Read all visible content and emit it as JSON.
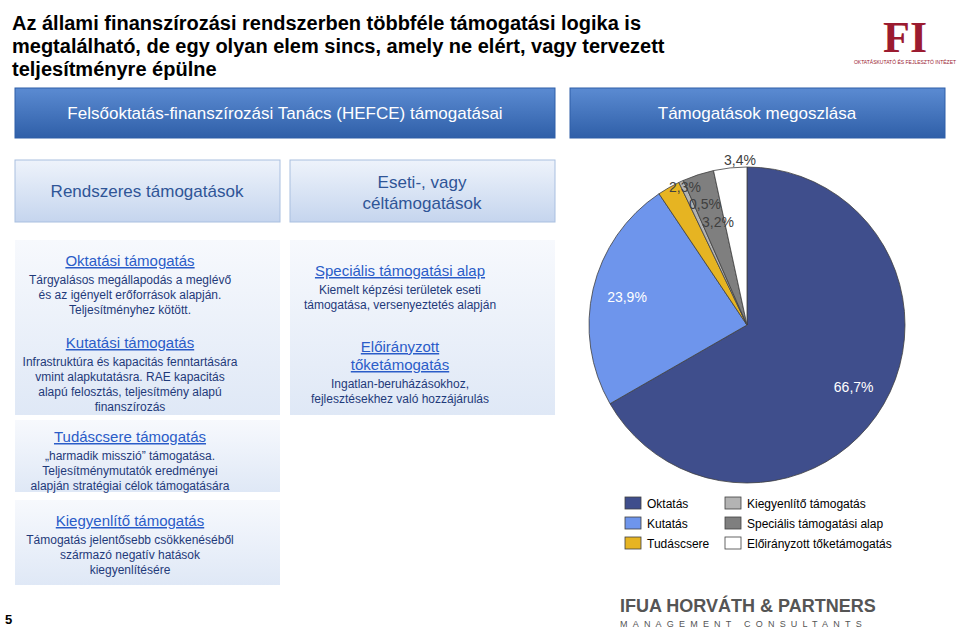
{
  "slide": {
    "title": [
      "Az állami finanszírozási rendszerben többféle támogatási logika is",
      "megtalálható, de egy olyan elem sincs, amely ne elért, vagy tervezett",
      "teljesítményre épülne"
    ],
    "logo": "FI",
    "logo_caption": "OKTATÁSKUTATÓ ÉS FEJLESZTŐ INTÉZET",
    "header_left": "Felsőoktatás-finanszírozási Tanács (HEFCE) támogatásai",
    "column_left": [
      "Rendszeres támogatások"
    ],
    "column_middle": [
      "Eseti-, vagy",
      "céltámogatások"
    ],
    "left_items": [
      {
        "heading": [
          "Oktatási támogatás"
        ],
        "text": [
          "Tárgyalásos megállapodás a meglévő",
          "és az igényelt erőforrások alapján.",
          "Teljesítményhez kötött."
        ]
      },
      {
        "heading": [
          "Kutatási támogatás"
        ],
        "text": [
          "Infrastruktúra és kapacitás fenntartására",
          "vmint alapkutatásra. RAE  kapacitás",
          "alapú felosztás, teljesítmény alapú",
          "finanszírozás"
        ]
      },
      {
        "heading": [
          "Tudáscsere támogatás"
        ],
        "text": [
          "„harmadik misszió” támogatása.",
          "Teljesítménymutatók eredményei",
          "alapján stratégiai célok támogatására"
        ]
      },
      {
        "heading": [
          "Kiegyenlítő támogatás"
        ],
        "text": [
          "Támogatás jelentősebb csökkenéséből",
          "származó negatív hatások",
          "kiegyenlítésére"
        ]
      }
    ],
    "middle_items": [
      {
        "heading": [
          "Speciális támogatási alap"
        ],
        "text": [
          "Kiemelt képzési területek eseti",
          "támogatása, versenyeztetés alapján"
        ]
      },
      {
        "heading": [
          "Előirányzott",
          "tőketámogatás"
        ],
        "text": [
          "Ingatlan-beruházásokhoz,",
          "fejlesztésekhez való hozzájárulás"
        ]
      }
    ],
    "page_number": "5",
    "footer": [
      "IFUA HORVÁTH & PARTNERS",
      "MANAGEMENT CONSULTANTS"
    ]
  },
  "chart_data": {
    "type": "pie",
    "title": "Támogatások megoszlása",
    "categories": [
      "Oktatás",
      "Kutatás",
      "Tudáscsere",
      "Kiegyenlítő támogatás",
      "Speciális támogatási alap",
      "Előirányzott tőketámogatás"
    ],
    "values": [
      66.7,
      23.9,
      2.3,
      0.5,
      3.2,
      3.4
    ],
    "value_labels": [
      "66,7%",
      "23,9%",
      "2,3%",
      "0,5%",
      "3,2%",
      "3,4%"
    ],
    "colors": [
      "#3f4e8c",
      "#6e95ec",
      "#e6b422",
      "#b3b3b3",
      "#7f7f7f",
      "#ffffff"
    ],
    "data_labels": true,
    "legend": "bottom"
  }
}
